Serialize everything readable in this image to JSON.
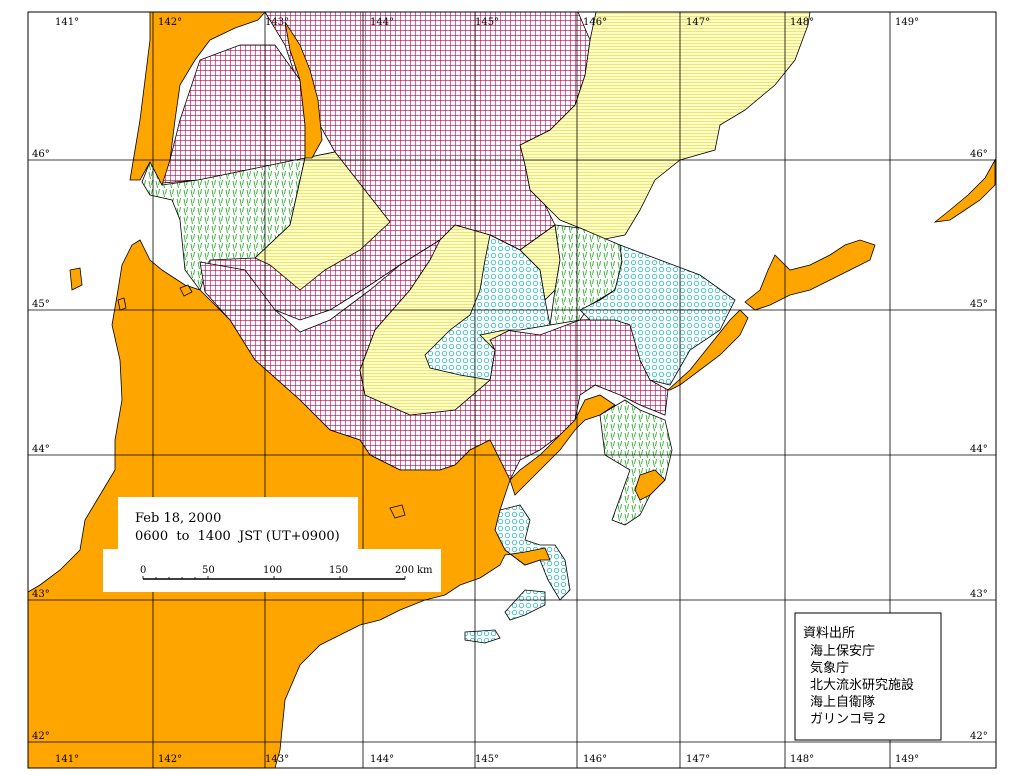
{
  "map": {
    "longitude_labels": [
      "141°",
      "142°",
      "143°",
      "144°",
      "145°",
      "146°",
      "147°",
      "148°",
      "149°"
    ],
    "latitude_labels": [
      "46°",
      "45°",
      "44°",
      "43°",
      "42°"
    ],
    "colors": {
      "land": "#FFA500",
      "ice_dense": "#C8004B",
      "ice_medium": "#FFFFB0",
      "ice_thin": "#40C040",
      "ice_new": "#4DC8C8",
      "grid": "#000000",
      "background": "#FFFFFF"
    }
  },
  "info_box": {
    "date": "Feb 18, 2000",
    "time_range": "0600  to  1400  JST (UT+0900)"
  },
  "scale_bar": {
    "ticks": [
      "0",
      "50",
      "100",
      "150",
      "200"
    ],
    "unit": "km"
  },
  "source_box": {
    "title": "資料出所",
    "lines": [
      "海上保安庁",
      "気象庁",
      "北大流氷研究施設",
      "海上自衛隊",
      "ガリンコ号２"
    ]
  }
}
